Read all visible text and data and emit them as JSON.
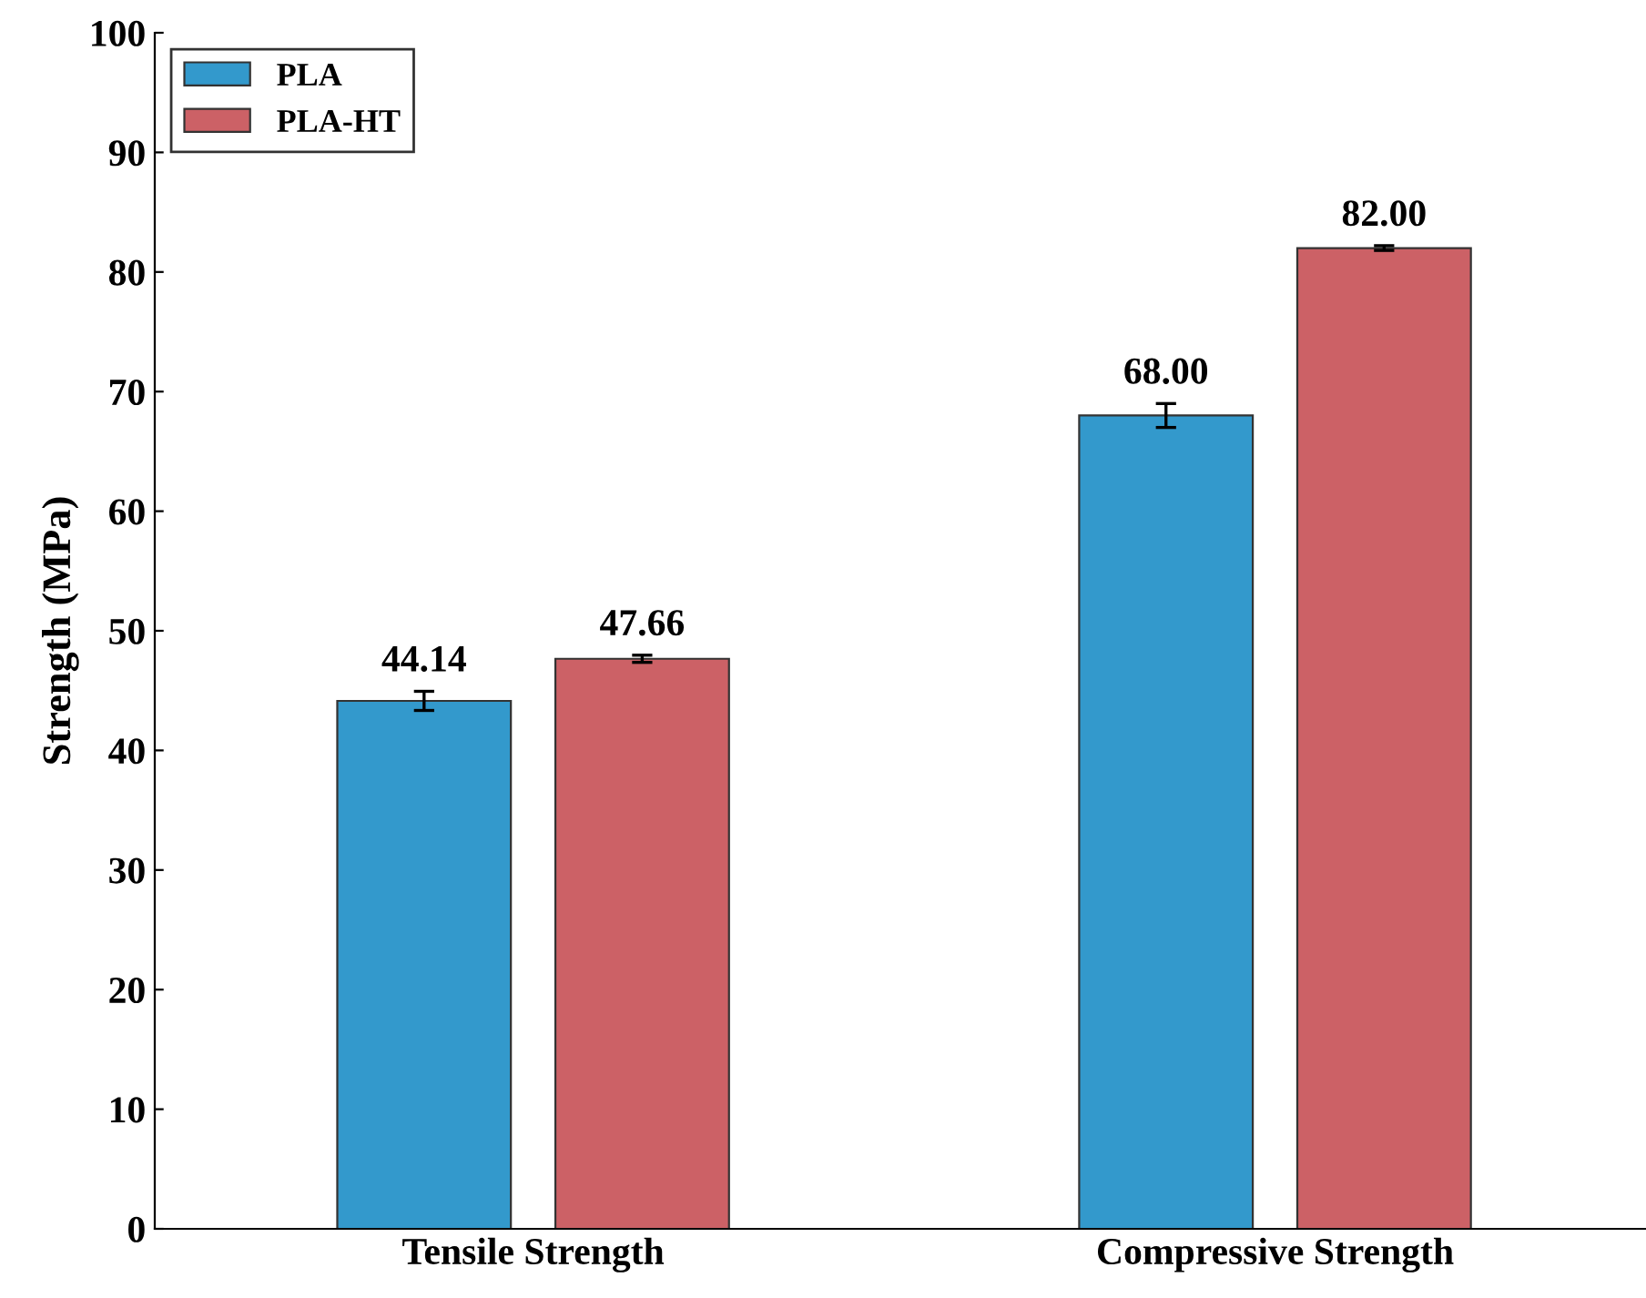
{
  "chart_data": {
    "type": "bar",
    "ylabel": "Strength (MPa)",
    "categories": [
      "Tensile Strength",
      "Compressive Strength"
    ],
    "series": [
      {
        "name": "PLA",
        "color": "#3399cc",
        "values": [
          44.14,
          68.0
        ],
        "errors": [
          0.8,
          1.0
        ],
        "value_labels": [
          "44.14",
          "68.00"
        ]
      },
      {
        "name": "PLA-HT",
        "color": "#cc6166",
        "values": [
          47.66,
          82.0
        ],
        "errors": [
          0.3,
          0.2
        ],
        "value_labels": [
          "47.66",
          "82.00"
        ]
      }
    ],
    "ylim": [
      0,
      100
    ],
    "yticks": [
      0,
      10,
      20,
      30,
      40,
      50,
      60,
      70,
      80,
      90,
      100
    ],
    "grid": false,
    "legend": "top left"
  }
}
